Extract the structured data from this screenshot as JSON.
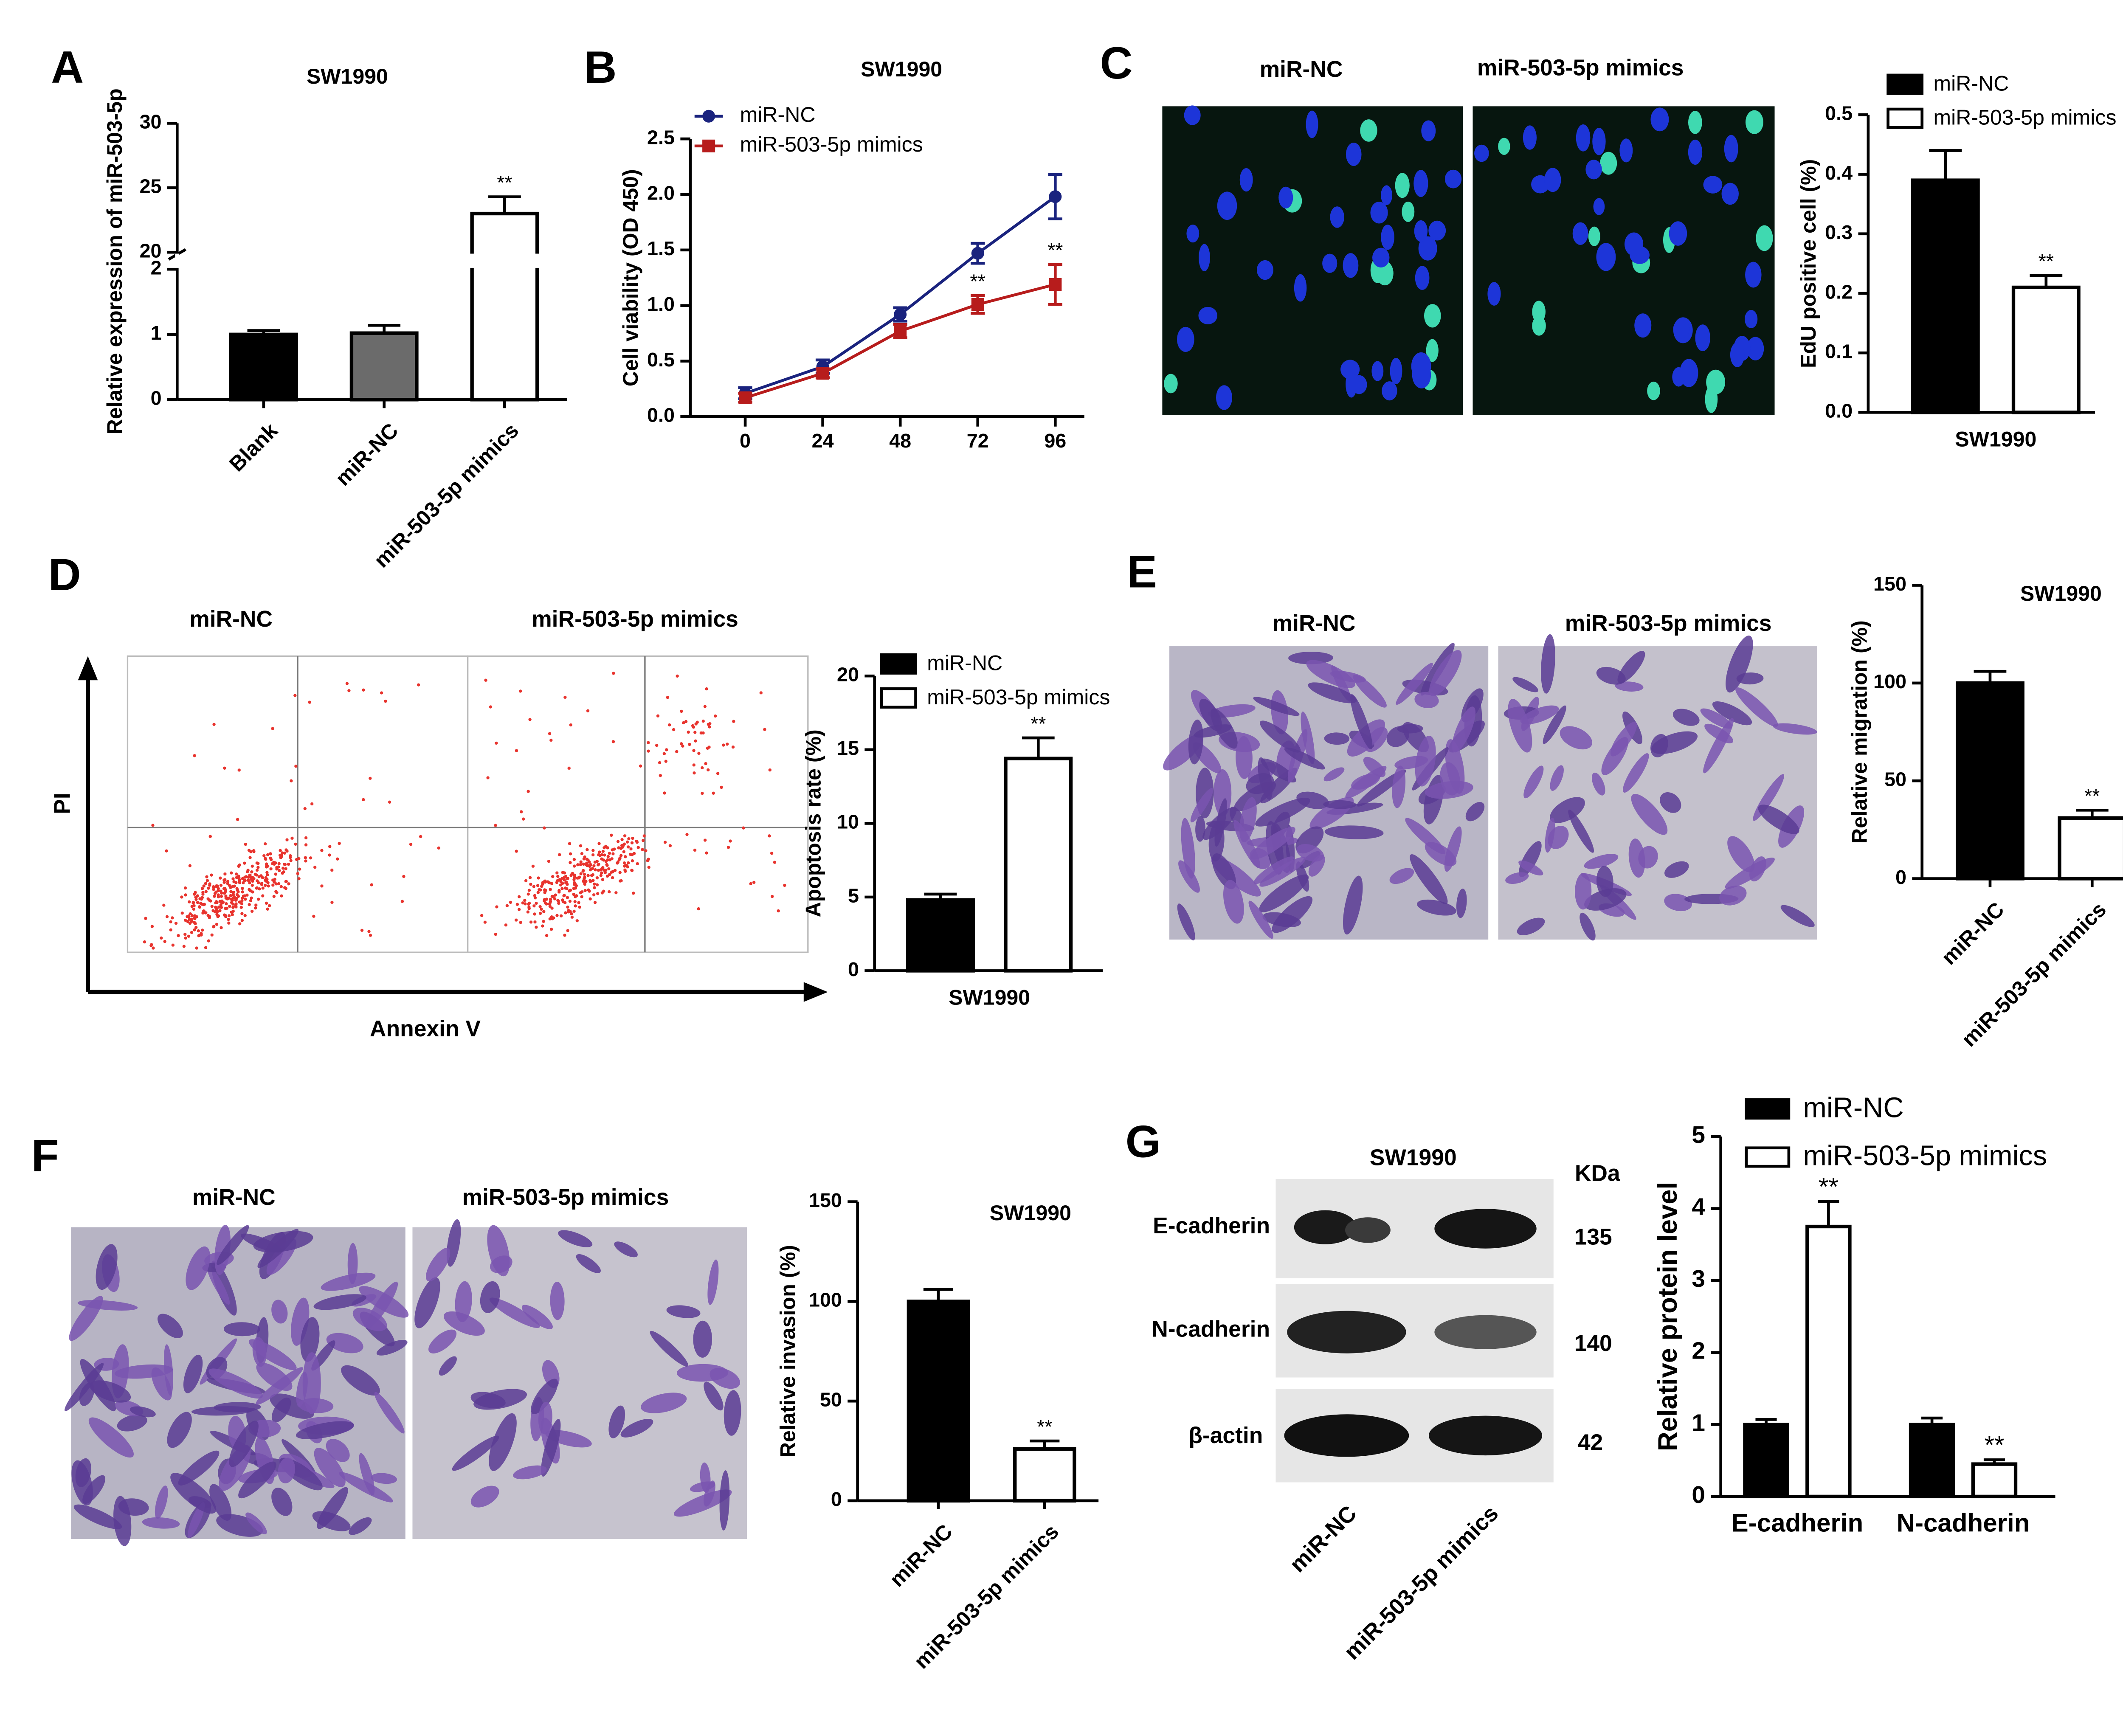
{
  "panel_labels": [
    "A",
    "B",
    "C",
    "D",
    "E",
    "F",
    "G"
  ],
  "image_panels": {
    "C": {
      "labels": [
        "miR-NC",
        "miR-503-5p mimics"
      ]
    },
    "D": {
      "labels": [
        "miR-NC",
        "miR-503-5p mimics"
      ],
      "y_axis": "PI",
      "x_axis": "Annexin V"
    },
    "E": {
      "labels": [
        "miR-NC",
        "miR-503-5p mimics"
      ]
    },
    "F": {
      "labels": [
        "miR-NC",
        "miR-503-5p mimics"
      ]
    },
    "G": {
      "title": "SW1990",
      "unit": "KDa",
      "rows": [
        {
          "protein": "E-cadherin",
          "kda": 135
        },
        {
          "protein": "N-cadherin",
          "kda": 140
        },
        {
          "protein": "β-actin",
          "kda": 42
        }
      ],
      "lanes": [
        "miR-NC",
        "miR-503-5p mimics"
      ]
    }
  },
  "chart_data": [
    {
      "type": "bar",
      "title": "SW1990",
      "ylabel": "Relative expression of miR-503-5p",
      "categories": [
        "Blank",
        "miR-NC",
        "miR-503-5p mimics"
      ],
      "values": [
        1.0,
        1.02,
        23.0
      ],
      "errors": [
        0.06,
        0.12,
        1.3
      ],
      "colors": [
        "#000000",
        "#6b6b6b",
        "#ffffff"
      ],
      "ylim": [
        0,
        30
      ],
      "axis_break": [
        2,
        20
      ],
      "yticks": [
        0,
        1,
        2,
        20,
        25,
        30
      ],
      "annotations": [
        {
          "category": "miR-503-5p mimics",
          "text": "**"
        }
      ]
    },
    {
      "type": "line",
      "title": "SW1990",
      "ylabel": "Cell viability (OD 450)",
      "x": [
        0,
        24,
        48,
        72,
        96
      ],
      "xticks": [
        0,
        24,
        48,
        72,
        96
      ],
      "xlim": [
        -17,
        105
      ],
      "ylim": [
        0,
        2.5
      ],
      "yticks": [
        {
          "value": 0,
          "label": "0.0"
        },
        0.5,
        {
          "value": 1,
          "label": "1.0"
        },
        1.5,
        {
          "value": 2,
          "label": "2.0"
        },
        2.5
      ],
      "series": [
        {
          "name": "miR-NC",
          "color": "#1a237e",
          "marker": "circle",
          "values": [
            0.21,
            0.45,
            0.92,
            1.47,
            1.98
          ],
          "errors": [
            0.05,
            0.06,
            0.06,
            0.09,
            0.2
          ]
        },
        {
          "name": "miR-503-5p mimics",
          "color": "#b71c1c",
          "marker": "square",
          "values": [
            0.17,
            0.39,
            0.77,
            1.01,
            1.19
          ],
          "errors": [
            0.04,
            0.04,
            0.06,
            0.08,
            0.18
          ]
        }
      ],
      "annotations": [
        {
          "x": 72,
          "series": "miR-503-5p mimics",
          "text": "**"
        },
        {
          "x": 96,
          "series": "miR-503-5p mimics",
          "text": "**"
        }
      ]
    },
    {
      "type": "bar",
      "ylabel": "EdU positive cell (%)",
      "categories": [
        "SW1990"
      ],
      "series": [
        {
          "name": "miR-NC",
          "color": "#000000",
          "values": [
            0.39
          ],
          "errors": [
            0.05
          ]
        },
        {
          "name": "miR-503-5p mimics",
          "color": "#ffffff",
          "values": [
            0.21
          ],
          "errors": [
            0.02
          ]
        }
      ],
      "ylim": [
        0,
        0.5
      ],
      "yticks": [
        {
          "value": 0,
          "label": "0.0"
        },
        0.1,
        0.2,
        0.3,
        0.4,
        0.5
      ],
      "annotations": [
        {
          "category": "SW1990",
          "series": "miR-503-5p mimics",
          "text": "**"
        }
      ]
    },
    {
      "type": "bar",
      "ylabel": "Apoptosis rate (%)",
      "categories": [
        "SW1990"
      ],
      "series": [
        {
          "name": "miR-NC",
          "color": "#000000",
          "values": [
            4.8
          ],
          "errors": [
            0.4
          ]
        },
        {
          "name": "miR-503-5p mimics",
          "color": "#ffffff",
          "values": [
            14.4
          ],
          "errors": [
            1.4
          ]
        }
      ],
      "ylim": [
        0,
        20
      ],
      "yticks": [
        0,
        5,
        10,
        15,
        20
      ],
      "annotations": [
        {
          "category": "SW1990",
          "series": "miR-503-5p mimics",
          "text": "**"
        }
      ]
    },
    {
      "type": "bar",
      "title": "SW1990",
      "ylabel": "Relative migration (%)",
      "categories": [
        "miR-NC",
        "miR-503-5p mimics"
      ],
      "values": [
        100,
        31
      ],
      "errors": [
        6,
        4
      ],
      "colors": [
        "#000000",
        "#ffffff"
      ],
      "ylim": [
        0,
        150
      ],
      "yticks": [
        0,
        50,
        100,
        150
      ],
      "annotations": [
        {
          "category": "miR-503-5p mimics",
          "text": "**"
        }
      ]
    },
    {
      "type": "bar",
      "title": "SW1990",
      "ylabel": "Relative invasion (%)",
      "categories": [
        "miR-NC",
        "miR-503-5p mimics"
      ],
      "values": [
        100,
        26
      ],
      "errors": [
        6,
        4
      ],
      "colors": [
        "#000000",
        "#ffffff"
      ],
      "ylim": [
        0,
        150
      ],
      "yticks": [
        0,
        50,
        100,
        150
      ],
      "annotations": [
        {
          "category": "miR-503-5p mimics",
          "text": "**"
        }
      ]
    },
    {
      "type": "bar",
      "ylabel": "Relative protein level",
      "categories": [
        "E-cadherin",
        "N-cadherin"
      ],
      "series": [
        {
          "name": "miR-NC",
          "color": "#000000",
          "values": [
            1.0,
            1.0
          ],
          "errors": [
            0.07,
            0.09
          ]
        },
        {
          "name": "miR-503-5p mimics",
          "color": "#ffffff",
          "values": [
            3.75,
            0.45
          ],
          "errors": [
            0.35,
            0.06
          ]
        }
      ],
      "ylim": [
        0,
        5
      ],
      "yticks": [
        0,
        1,
        2,
        3,
        4,
        5
      ],
      "annotations": [
        {
          "category": "E-cadherin",
          "series": "miR-503-5p mimics",
          "text": "**"
        },
        {
          "category": "N-cadherin",
          "series": "miR-503-5p mimics",
          "text": "**"
        }
      ]
    }
  ]
}
